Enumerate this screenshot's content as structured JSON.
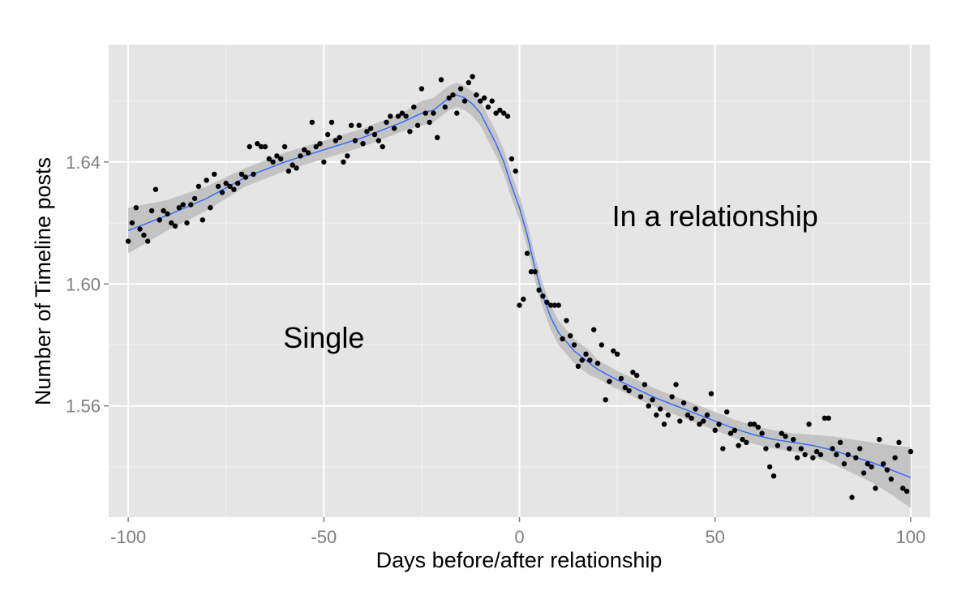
{
  "chart_data": {
    "type": "scatter",
    "xlabel": "Days before/after relationship",
    "ylabel": "Number of Timeline posts",
    "xlim": [
      -105,
      105
    ],
    "ylim": [
      1.5235,
      1.6785
    ],
    "x_ticks": [
      -100,
      -50,
      0,
      50,
      100
    ],
    "x_tick_labels": [
      "-100",
      "-50",
      "0",
      "50",
      "100"
    ],
    "y_ticks": [
      1.56,
      1.6,
      1.64
    ],
    "y_tick_labels": [
      "1.56",
      "1.60",
      "1.64"
    ],
    "grid": true,
    "colors": {
      "panel_background": "#e5e5e5",
      "grid_major": "#ffffff",
      "points": "#000000",
      "smooth_line": "#3366ff",
      "confidence_band": "#bdbdbd"
    },
    "annotations": [
      {
        "text": "Single",
        "x": -50,
        "y": 1.579
      },
      {
        "text": "In a relationship",
        "x": 50,
        "y": 1.619
      }
    ],
    "points": [
      [
        -100,
        1.614
      ],
      [
        -99,
        1.62
      ],
      [
        -98,
        1.625
      ],
      [
        -97,
        1.618
      ],
      [
        -96,
        1.616
      ],
      [
        -95,
        1.614
      ],
      [
        -94,
        1.624
      ],
      [
        -93,
        1.631
      ],
      [
        -92,
        1.621
      ],
      [
        -91,
        1.624
      ],
      [
        -90,
        1.623
      ],
      [
        -89,
        1.62
      ],
      [
        -88,
        1.619
      ],
      [
        -87,
        1.625
      ],
      [
        -86,
        1.626
      ],
      [
        -85,
        1.62
      ],
      [
        -84,
        1.626
      ],
      [
        -83,
        1.628
      ],
      [
        -82,
        1.632
      ],
      [
        -81,
        1.621
      ],
      [
        -80,
        1.634
      ],
      [
        -79,
        1.625
      ],
      [
        -78,
        1.636
      ],
      [
        -77,
        1.632
      ],
      [
        -76,
        1.63
      ],
      [
        -75,
        1.633
      ],
      [
        -74,
        1.632
      ],
      [
        -73,
        1.631
      ],
      [
        -72,
        1.633
      ],
      [
        -71,
        1.636
      ],
      [
        -70,
        1.635
      ],
      [
        -69,
        1.645
      ],
      [
        -68,
        1.636
      ],
      [
        -67,
        1.646
      ],
      [
        -66,
        1.645
      ],
      [
        -65,
        1.645
      ],
      [
        -64,
        1.641
      ],
      [
        -63,
        1.64
      ],
      [
        -62,
        1.642
      ],
      [
        -61,
        1.641
      ],
      [
        -60,
        1.645
      ],
      [
        -59,
        1.637
      ],
      [
        -58,
        1.639
      ],
      [
        -57,
        1.638
      ],
      [
        -56,
        1.642
      ],
      [
        -55,
        1.644
      ],
      [
        -54,
        1.643
      ],
      [
        -53,
        1.653
      ],
      [
        -52,
        1.645
      ],
      [
        -51,
        1.646
      ],
      [
        -50,
        1.64
      ],
      [
        -49,
        1.649
      ],
      [
        -48,
        1.653
      ],
      [
        -47,
        1.647
      ],
      [
        -46,
        1.648
      ],
      [
        -45,
        1.64
      ],
      [
        -44,
        1.642
      ],
      [
        -43,
        1.652
      ],
      [
        -42,
        1.647
      ],
      [
        -41,
        1.652
      ],
      [
        -40,
        1.646
      ],
      [
        -39,
        1.65
      ],
      [
        -38,
        1.651
      ],
      [
        -37,
        1.649
      ],
      [
        -36,
        1.647
      ],
      [
        -35,
        1.645
      ],
      [
        -34,
        1.653
      ],
      [
        -33,
        1.655
      ],
      [
        -32,
        1.651
      ],
      [
        -31,
        1.655
      ],
      [
        -30,
        1.656
      ],
      [
        -29,
        1.655
      ],
      [
        -28,
        1.65
      ],
      [
        -27,
        1.658
      ],
      [
        -26,
        1.652
      ],
      [
        -25,
        1.664
      ],
      [
        -24,
        1.656
      ],
      [
        -23,
        1.653
      ],
      [
        -22,
        1.656
      ],
      [
        -21,
        1.648
      ],
      [
        -20,
        1.667
      ],
      [
        -19,
        1.658
      ],
      [
        -18,
        1.661
      ],
      [
        -17,
        1.662
      ],
      [
        -16,
        1.656
      ],
      [
        -15,
        1.664
      ],
      [
        -14,
        1.66
      ],
      [
        -13,
        1.666
      ],
      [
        -12,
        1.668
      ],
      [
        -11,
        1.662
      ],
      [
        -10,
        1.66
      ],
      [
        -9,
        1.661
      ],
      [
        -8,
        1.658
      ],
      [
        -7,
        1.66
      ],
      [
        -6,
        1.656
      ],
      [
        -5,
        1.657
      ],
      [
        -4,
        1.656
      ],
      [
        -3,
        1.655
      ],
      [
        -2,
        1.641
      ],
      [
        -1,
        1.637
      ],
      [
        0,
        1.593
      ],
      [
        1,
        1.595
      ],
      [
        2,
        1.61
      ],
      [
        3,
        1.604
      ],
      [
        4,
        1.604
      ],
      [
        5,
        1.598
      ],
      [
        6,
        1.596
      ],
      [
        7,
        1.594
      ],
      [
        8,
        1.593
      ],
      [
        9,
        1.593
      ],
      [
        10,
        1.593
      ],
      [
        11,
        1.582
      ],
      [
        12,
        1.588
      ],
      [
        13,
        1.583
      ],
      [
        14,
        1.58
      ],
      [
        15,
        1.573
      ],
      [
        16,
        1.575
      ],
      [
        17,
        1.577
      ],
      [
        18,
        1.575
      ],
      [
        19,
        1.585
      ],
      [
        20,
        1.574
      ],
      [
        21,
        1.58
      ],
      [
        22,
        1.562
      ],
      [
        23,
        1.568
      ],
      [
        24,
        1.578
      ],
      [
        25,
        1.577
      ],
      [
        26,
        1.569
      ],
      [
        27,
        1.566
      ],
      [
        28,
        1.565
      ],
      [
        29,
        1.571
      ],
      [
        30,
        1.57
      ],
      [
        31,
        1.563
      ],
      [
        32,
        1.567
      ],
      [
        33,
        1.56
      ],
      [
        34,
        1.562
      ],
      [
        35,
        1.557
      ],
      [
        36,
        1.559
      ],
      [
        37,
        1.554
      ],
      [
        38,
        1.557
      ],
      [
        39,
        1.563
      ],
      [
        40,
        1.567
      ],
      [
        41,
        1.555
      ],
      [
        42,
        1.561
      ],
      [
        43,
        1.557
      ],
      [
        44,
        1.556
      ],
      [
        45,
        1.559
      ],
      [
        46,
        1.554
      ],
      [
        47,
        1.555
      ],
      [
        48,
        1.557
      ],
      [
        49,
        1.564
      ],
      [
        50,
        1.552
      ],
      [
        51,
        1.554
      ],
      [
        52,
        1.546
      ],
      [
        53,
        1.558
      ],
      [
        54,
        1.551
      ],
      [
        55,
        1.552
      ],
      [
        56,
        1.547
      ],
      [
        57,
        1.549
      ],
      [
        58,
        1.548
      ],
      [
        59,
        1.554
      ],
      [
        60,
        1.554
      ],
      [
        61,
        1.553
      ],
      [
        62,
        1.551
      ],
      [
        63,
        1.546
      ],
      [
        64,
        1.54
      ],
      [
        65,
        1.537
      ],
      [
        66,
        1.547
      ],
      [
        67,
        1.551
      ],
      [
        68,
        1.55
      ],
      [
        69,
        1.546
      ],
      [
        70,
        1.549
      ],
      [
        71,
        1.543
      ],
      [
        72,
        1.546
      ],
      [
        73,
        1.544
      ],
      [
        74,
        1.554
      ],
      [
        75,
        1.543
      ],
      [
        76,
        1.545
      ],
      [
        77,
        1.544
      ],
      [
        78,
        1.556
      ],
      [
        79,
        1.556
      ],
      [
        80,
        1.546
      ],
      [
        81,
        1.544
      ],
      [
        82,
        1.548
      ],
      [
        83,
        1.541
      ],
      [
        84,
        1.544
      ],
      [
        85,
        1.53
      ],
      [
        86,
        1.543
      ],
      [
        87,
        1.546
      ],
      [
        88,
        1.538
      ],
      [
        89,
        1.541
      ],
      [
        90,
        1.54
      ],
      [
        91,
        1.533
      ],
      [
        92,
        1.549
      ],
      [
        93,
        1.541
      ],
      [
        94,
        1.539
      ],
      [
        95,
        1.536
      ],
      [
        96,
        1.543
      ],
      [
        97,
        1.548
      ],
      [
        98,
        1.533
      ],
      [
        99,
        1.532
      ],
      [
        100,
        1.545
      ]
    ],
    "smooth": {
      "x": [
        -100,
        -90,
        -80,
        -70,
        -60,
        -50,
        -40,
        -30,
        -25,
        -22,
        -20,
        -18,
        -16,
        -14,
        -12,
        -10,
        -8,
        -6,
        -4,
        -2,
        0,
        2,
        4,
        6,
        8,
        10,
        12,
        14,
        16,
        18,
        20,
        25,
        30,
        35,
        40,
        45,
        50,
        55,
        60,
        65,
        70,
        75,
        80,
        85,
        90,
        95,
        100
      ],
      "y": [
        1.6175,
        1.6225,
        1.628,
        1.635,
        1.64,
        1.644,
        1.648,
        1.653,
        1.656,
        1.657,
        1.659,
        1.661,
        1.662,
        1.661,
        1.659,
        1.656,
        1.651,
        1.646,
        1.64,
        1.632,
        1.625,
        1.616,
        1.605,
        1.596,
        1.589,
        1.584,
        1.581,
        1.578,
        1.576,
        1.574,
        1.572,
        1.5685,
        1.5655,
        1.5625,
        1.56,
        1.5575,
        1.555,
        1.5525,
        1.5505,
        1.549,
        1.548,
        1.547,
        1.5455,
        1.5435,
        1.5415,
        1.539,
        1.5365
      ],
      "lower": [
        1.61,
        1.6175,
        1.624,
        1.632,
        1.637,
        1.641,
        1.645,
        1.65,
        1.652,
        1.653,
        1.655,
        1.657,
        1.658,
        1.657,
        1.655,
        1.652,
        1.647,
        1.642,
        1.636,
        1.628,
        1.621,
        1.612,
        1.601,
        1.592,
        1.585,
        1.58,
        1.577,
        1.574,
        1.572,
        1.57,
        1.569,
        1.5655,
        1.5625,
        1.5595,
        1.557,
        1.5545,
        1.552,
        1.5495,
        1.5475,
        1.546,
        1.545,
        1.5435,
        1.541,
        1.538,
        1.535,
        1.531,
        1.5265
      ],
      "upper": [
        1.625,
        1.6275,
        1.632,
        1.638,
        1.643,
        1.647,
        1.651,
        1.656,
        1.66,
        1.661,
        1.663,
        1.665,
        1.666,
        1.665,
        1.663,
        1.66,
        1.655,
        1.65,
        1.644,
        1.636,
        1.629,
        1.62,
        1.609,
        1.6,
        1.593,
        1.588,
        1.585,
        1.582,
        1.58,
        1.578,
        1.575,
        1.5715,
        1.5685,
        1.5655,
        1.563,
        1.5605,
        1.558,
        1.5555,
        1.5535,
        1.552,
        1.551,
        1.5505,
        1.55,
        1.549,
        1.548,
        1.547,
        1.5465
      ]
    }
  }
}
